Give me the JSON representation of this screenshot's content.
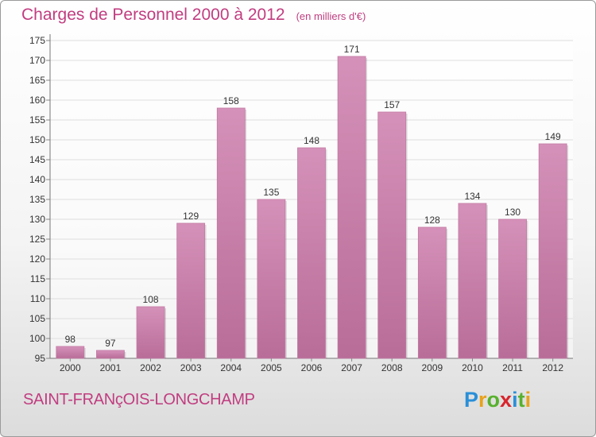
{
  "title": "Charges de Personnel 2000 à 2012",
  "unit": "(en milliers d'€)",
  "commune": "SAINT-FRANçOIS-LONGCHAMP",
  "brand": {
    "letters": [
      "P",
      "r",
      "o",
      "x",
      "i",
      "t",
      "i"
    ],
    "colors": [
      "#2a8fd8",
      "#e8a21c",
      "#58b12e",
      "#d8242c",
      "#2a8fd8",
      "#58b12e",
      "#e8a21c"
    ]
  },
  "colors": {
    "bar": "#d591b9",
    "bar_dark": "#b86d98",
    "accent": "#c13d80",
    "grid": "#dedede"
  },
  "chart_data": {
    "type": "bar",
    "title": "Charges de Personnel 2000 à 2012",
    "subtitle": "(en milliers d'€)",
    "categories": [
      "2000",
      "2001",
      "2002",
      "2003",
      "2004",
      "2005",
      "2006",
      "2007",
      "2008",
      "2009",
      "2010",
      "2011",
      "2012"
    ],
    "values": [
      98,
      97,
      108,
      129,
      158,
      135,
      148,
      171,
      157,
      128,
      134,
      130,
      149
    ],
    "ylim": [
      95,
      175
    ],
    "yticks": [
      95,
      100,
      105,
      110,
      115,
      120,
      125,
      130,
      135,
      140,
      145,
      150,
      155,
      160,
      165,
      170,
      175
    ],
    "grid": true,
    "data_labels": true
  }
}
